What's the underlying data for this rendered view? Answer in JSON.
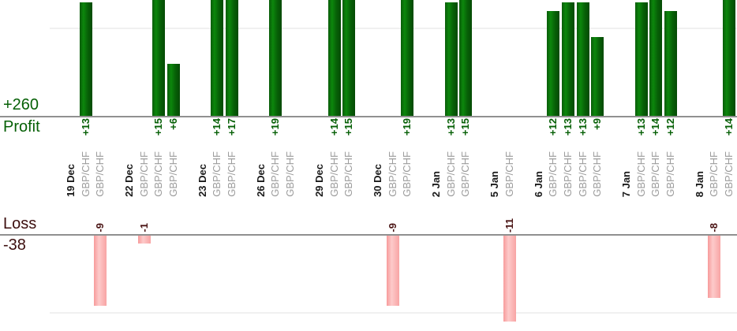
{
  "chart_data": {
    "type": "bar",
    "profit_section": {
      "total": "+260",
      "label": "Profit"
    },
    "loss_section": {
      "label": "Loss",
      "total": "-38"
    },
    "gridlines": {
      "profit_value": 10,
      "loss_value": -10
    },
    "groups": [
      {
        "date": "19 Dec",
        "trades": [
          {
            "symbol": "GBP/CHF",
            "value": 13
          },
          {
            "symbol": "GBP/CHF",
            "value": -9
          }
        ]
      },
      {
        "date": "22 Dec",
        "trades": [
          {
            "symbol": "GBP/CHF",
            "value": -1
          },
          {
            "symbol": "GBP/CHF",
            "value": 15
          },
          {
            "symbol": "GBP/CHF",
            "value": 6
          }
        ]
      },
      {
        "date": "23 Dec",
        "trades": [
          {
            "symbol": "GBP/CHF",
            "value": 14
          },
          {
            "symbol": "GBP/CHF",
            "value": 17
          }
        ]
      },
      {
        "date": "26 Dec",
        "trades": [
          {
            "symbol": "GBP/CHF",
            "value": 19
          },
          {
            "symbol": "GBP/CHF",
            "value": null
          }
        ]
      },
      {
        "date": "29 Dec",
        "trades": [
          {
            "symbol": "GBP/CHF",
            "value": 14
          },
          {
            "symbol": "GBP/CHF",
            "value": 15
          }
        ]
      },
      {
        "date": "30 Dec",
        "trades": [
          {
            "symbol": "GBP/CHF",
            "value": -9
          },
          {
            "symbol": "GBP/CHF",
            "value": 19
          }
        ]
      },
      {
        "date": "2 Jan",
        "trades": [
          {
            "symbol": "GBP/CHF",
            "value": 13
          },
          {
            "symbol": "GBP/CHF",
            "value": 15
          }
        ]
      },
      {
        "date": "5 Jan",
        "trades": [
          {
            "symbol": "GBP/CHF",
            "value": -11
          }
        ]
      },
      {
        "date": "6 Jan",
        "trades": [
          {
            "symbol": "GBP/CHF",
            "value": 12
          },
          {
            "symbol": "GBP/CHF",
            "value": 13
          },
          {
            "symbol": "GBP/CHF",
            "value": 13
          },
          {
            "symbol": "GBP/CHF",
            "value": 9
          }
        ]
      },
      {
        "date": "7 Jan",
        "trades": [
          {
            "symbol": "GBP/CHF",
            "value": 13
          },
          {
            "symbol": "GBP/CHF",
            "value": 14
          },
          {
            "symbol": "GBP/CHF",
            "value": 12
          }
        ]
      },
      {
        "date": "8 Jan",
        "trades": [
          {
            "symbol": "GBP/CHF",
            "value": -8
          },
          {
            "symbol": "GBP/CHF",
            "value": 14
          }
        ]
      }
    ],
    "colors": {
      "profit_bar": "#0c870c",
      "loss_bar": "#fdcaca",
      "profit_text": "#066006",
      "loss_text": "#4a1414",
      "loss_heading": "#3c0e0e",
      "date_text": "#1a1a1a",
      "symbol_text": "#9c9c9c",
      "axis": "#909090",
      "gridline": "#f0f0f0"
    }
  }
}
